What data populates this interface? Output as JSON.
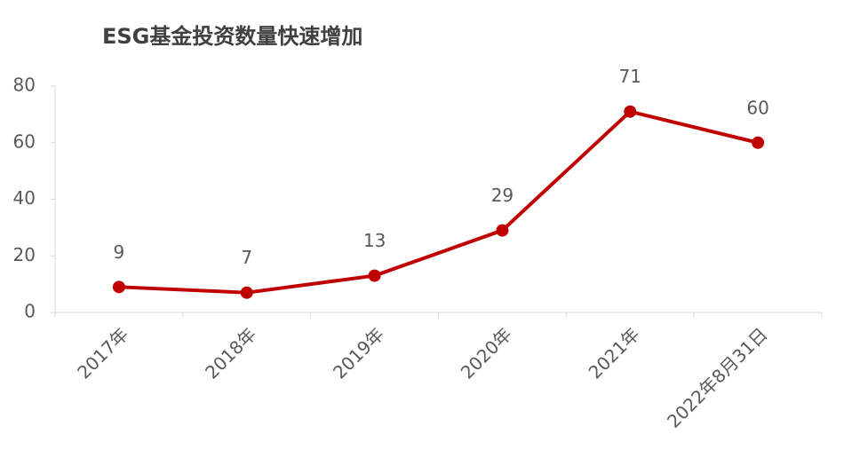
{
  "chart_data": {
    "type": "line",
    "title": "ESG基金投资数量快速增加",
    "categories": [
      "2017年",
      "2018年",
      "2019年",
      "2020年",
      "2021年",
      "2022年8月31日"
    ],
    "values": [
      9,
      7,
      13,
      29,
      71,
      60
    ],
    "color": "#c00000",
    "ylim": [
      0,
      80
    ],
    "yticks": [
      0,
      20,
      40,
      60,
      80
    ],
    "grid": false
  }
}
